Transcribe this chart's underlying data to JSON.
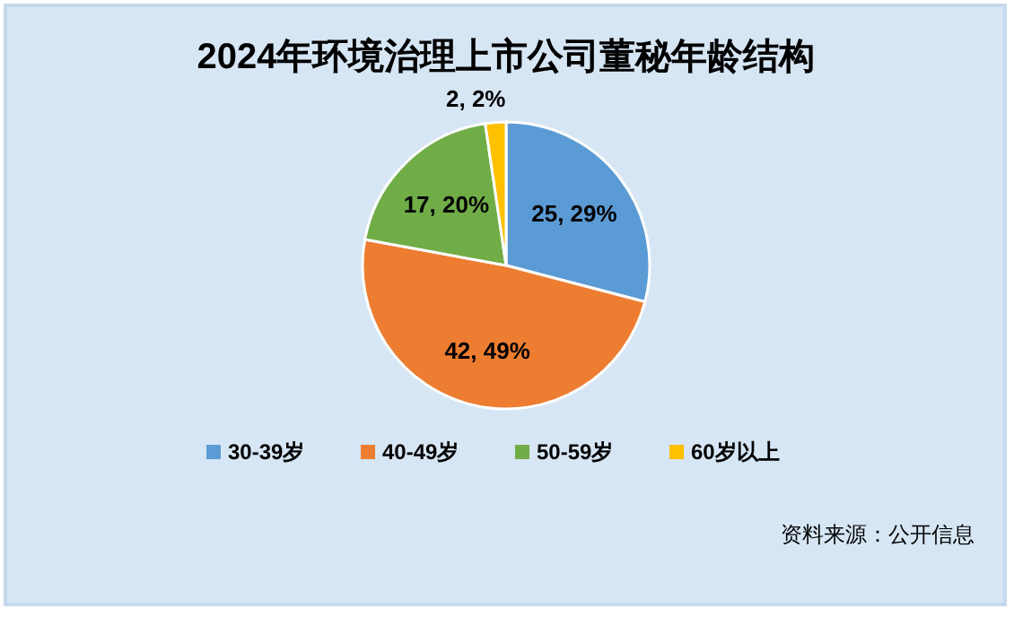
{
  "chart_data": {
    "type": "pie",
    "title": "2024年环境治理上市公司董秘年龄结构",
    "categories": [
      "30-39岁",
      "40-49岁",
      "50-59岁",
      "60岁以上"
    ],
    "values": [
      25,
      42,
      17,
      2
    ],
    "colors": [
      "#5b9bd5",
      "#ed7d31",
      "#70ad47",
      "#ffc000"
    ],
    "value_labels": [
      "25, 29%",
      "42, 49%",
      "17, 20%",
      "2, 2%"
    ],
    "legend": "bottom",
    "annotations": [
      "资料来源：公开信息"
    ]
  }
}
